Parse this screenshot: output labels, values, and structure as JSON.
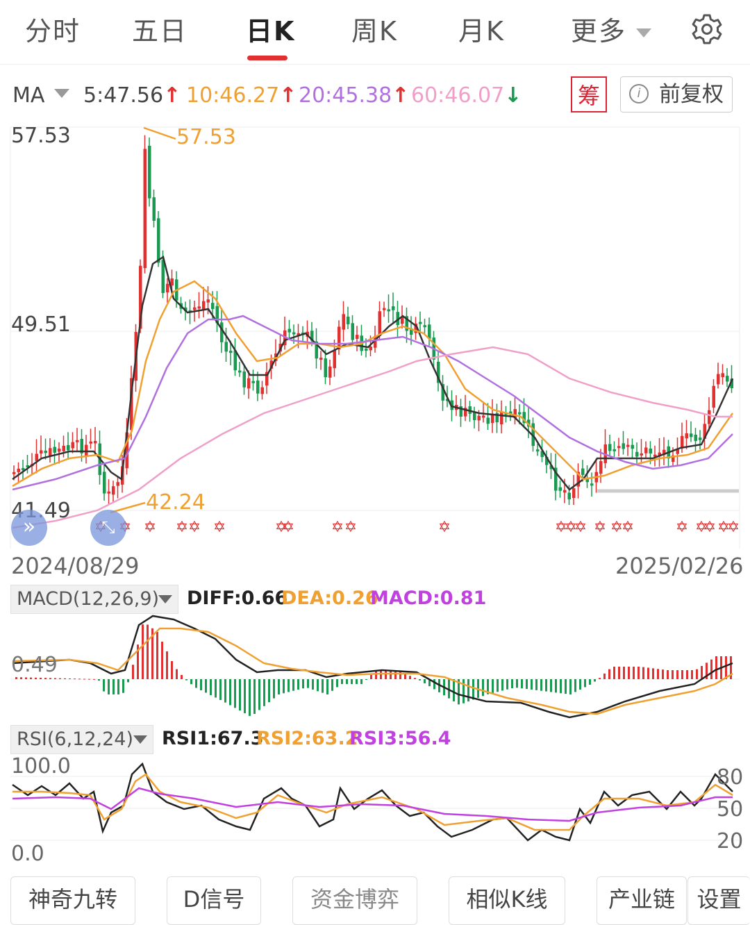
{
  "tabs": {
    "items": [
      {
        "label": "分时",
        "active": false
      },
      {
        "label": "五日",
        "active": false
      },
      {
        "label": "日K",
        "active": true
      },
      {
        "label": "周K",
        "active": false
      },
      {
        "label": "月K",
        "active": false
      }
    ],
    "more_label": "更多",
    "settings_icon": "gear-icon"
  },
  "ma": {
    "label": "MA",
    "ma5": "5:47.56",
    "ma10": "10:46.27",
    "ma20": "20:45.38",
    "ma60": "60:46.07",
    "chou_label": "筹",
    "fuquan_label": "前复权",
    "colors": {
      "ma5": "#333333",
      "ma10": "#f0a030",
      "ma20": "#b070e0",
      "ma60": "#f0a0c8",
      "up": "#e03030",
      "down": "#1a9a50"
    }
  },
  "kline": {
    "y_max_label": "57.53",
    "y_mid_label": "49.51",
    "y_min_label": "41.49",
    "high_marker": "57.53",
    "low_marker": "42.24",
    "date_start": "2024/08/29",
    "date_end": "2025/02/26"
  },
  "macd": {
    "selector": "MACD(12,26,9)",
    "diff": "DIFF:0.66",
    "dea": "DEA:0.26",
    "macd": "MACD:0.81",
    "axis_label": "0.49"
  },
  "rsi": {
    "selector": "RSI(6,12,24)",
    "rsi1": "RSI1:67.3",
    "rsi2": "RSI2:63.2",
    "rsi3": "RSI3:56.4",
    "y_top": "100.0",
    "y_bottom": "0.0",
    "level_80": "80",
    "level_50": "50",
    "level_20": "20"
  },
  "bottom_buttons": [
    "神奇九转",
    "D信号",
    "资金博弈",
    "相似K线",
    "产业链",
    "设置"
  ]
}
